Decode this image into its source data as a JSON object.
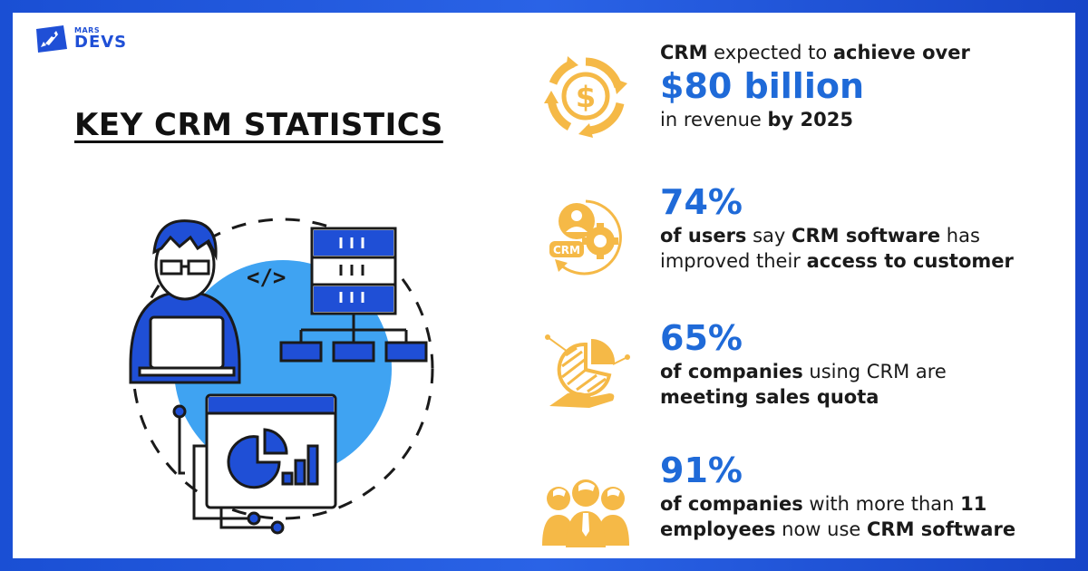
{
  "brand": {
    "small": "MARS",
    "name": "DEVS"
  },
  "heading": "KEY CRM STATISTICS",
  "illustration": {
    "code_tag": "</>"
  },
  "stats": [
    {
      "icon": "dollar-cycle-icon",
      "line1": {
        "a": "CRM",
        "b": " expected to ",
        "c": "achieve over"
      },
      "big": "$80 billion",
      "line2": {
        "a": "in revenue ",
        "b": "by 2025"
      }
    },
    {
      "icon": "crm-gear-icon",
      "big": "74%",
      "line1": {
        "a": "of users",
        "b": " say ",
        "c": "CRM software",
        "d": " has"
      },
      "line2": {
        "a": "improved their ",
        "b": "access to customer"
      }
    },
    {
      "icon": "pie-hand-icon",
      "big": "65%",
      "line1": {
        "a": "of companies",
        "b": " using CRM are"
      },
      "line2": {
        "a": "meeting sales quota"
      }
    },
    {
      "icon": "team-icon",
      "big": "91%",
      "line1": {
        "a": "of companies",
        "b": " with more than ",
        "c": "11"
      },
      "line2": {
        "a": "employees",
        "b": " now use ",
        "c": "CRM software"
      }
    }
  ],
  "colors": {
    "accent_blue": "#1f6ad8",
    "brand_blue": "#1f4fd6",
    "orange": "#f5b947",
    "light_blue": "#3fa3f2"
  }
}
